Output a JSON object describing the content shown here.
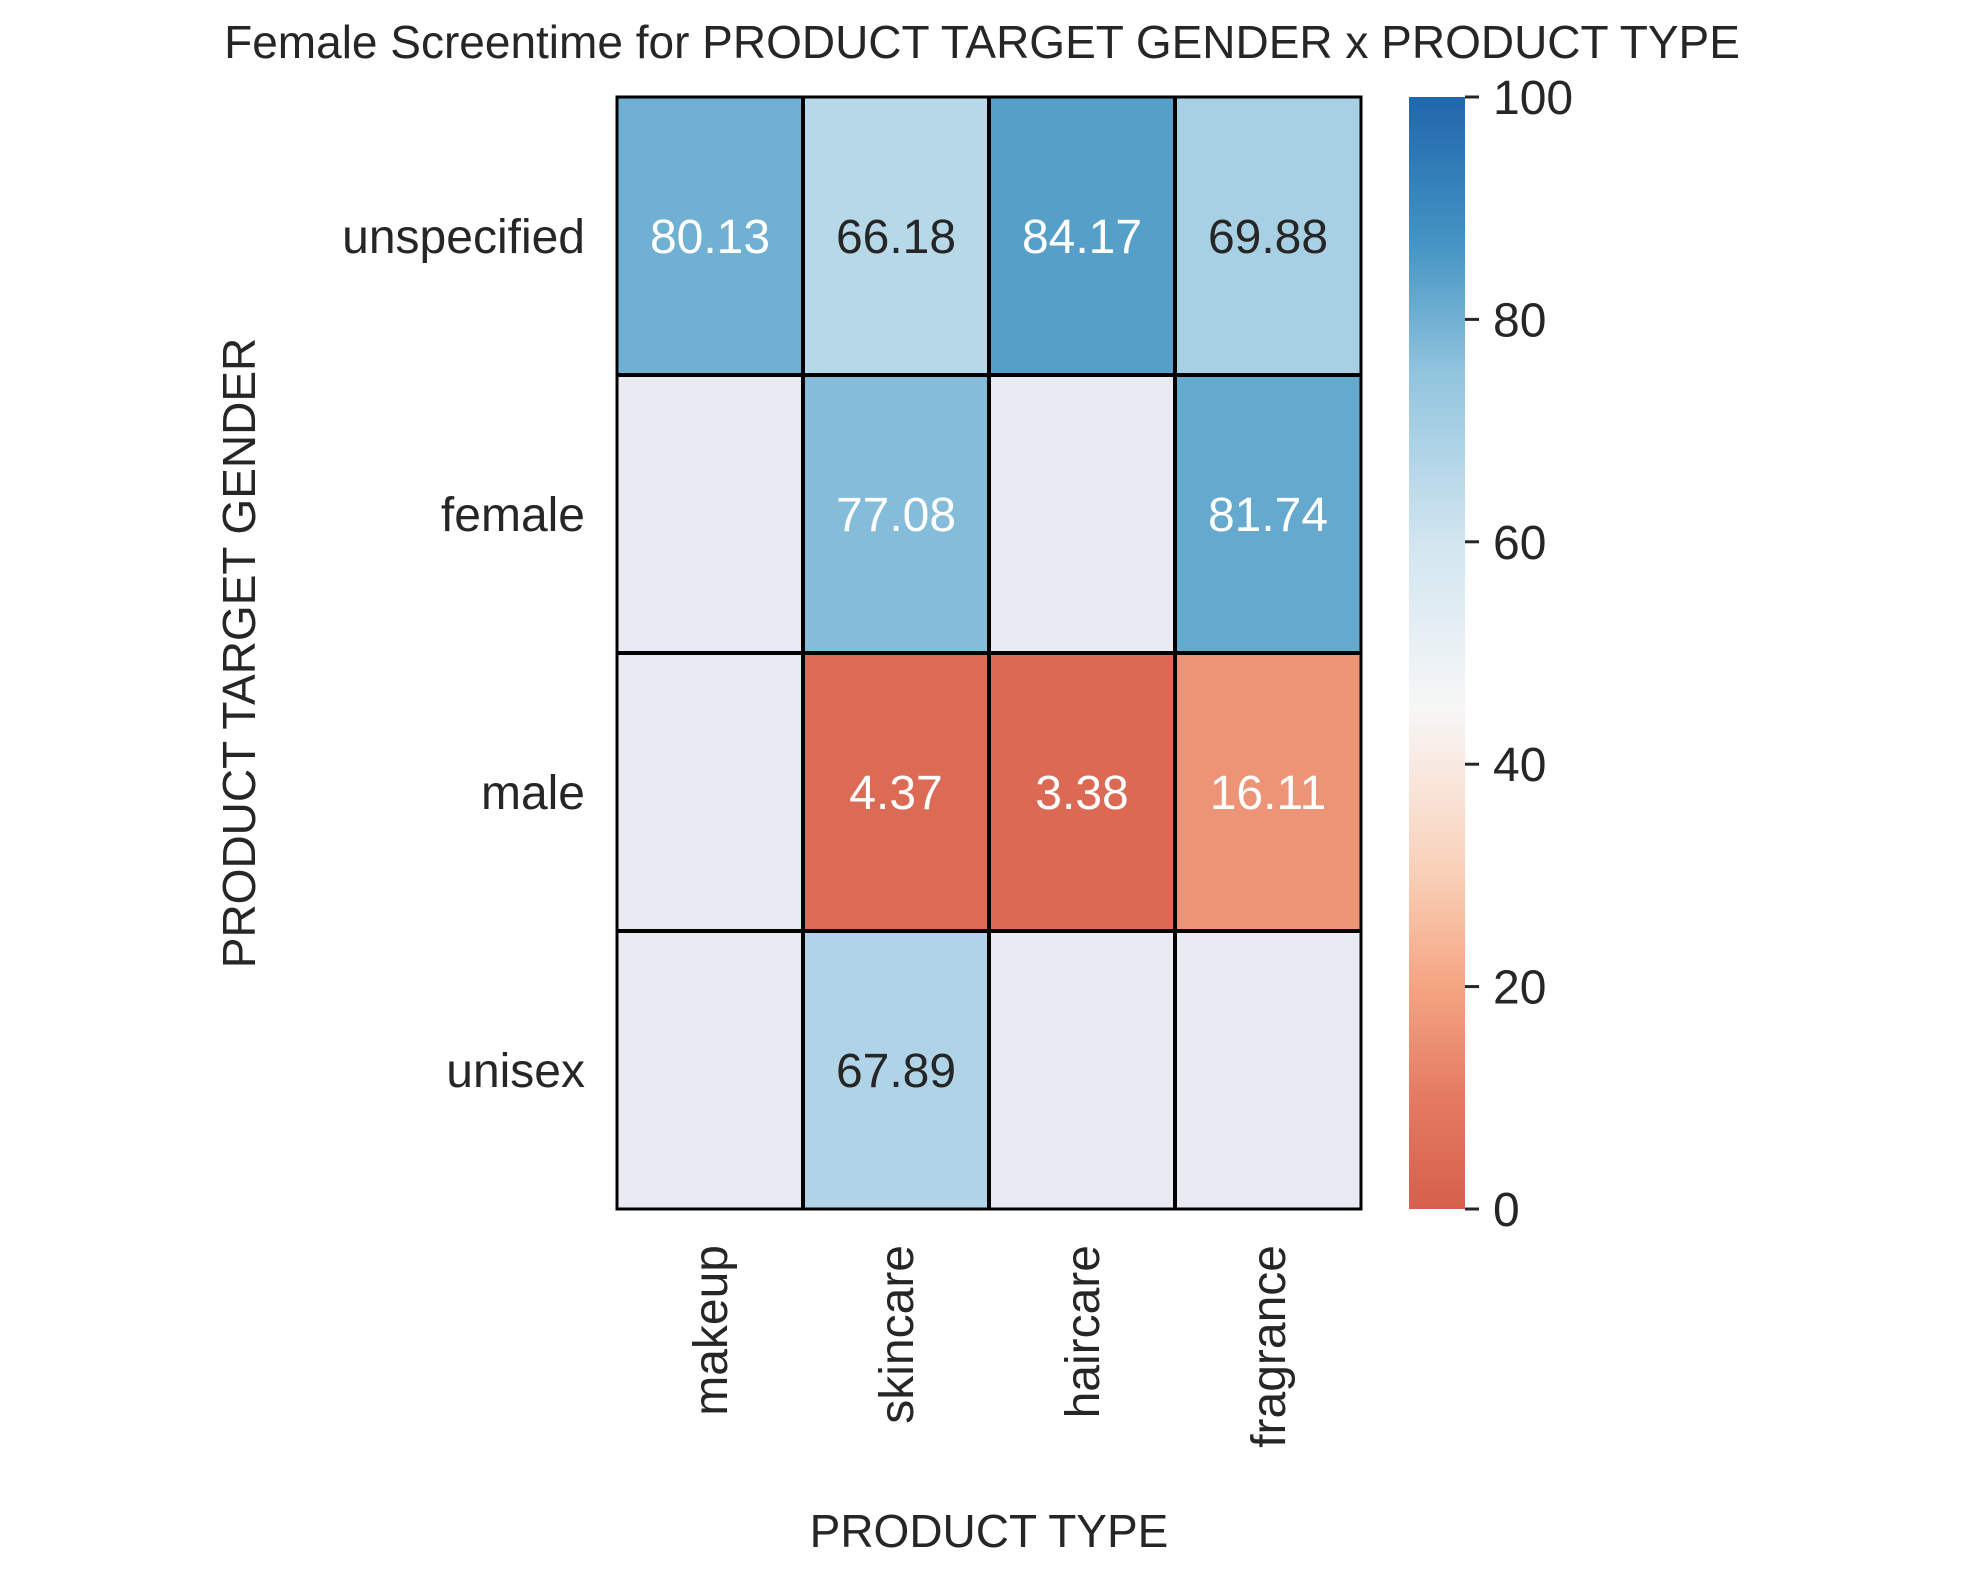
{
  "chart_data": {
    "type": "heatmap",
    "title": "Female Screentime for PRODUCT TARGET GENDER x PRODUCT TYPE",
    "xlabel": "PRODUCT TYPE",
    "ylabel": "PRODUCT TARGET GENDER",
    "x_categories": [
      "makeup",
      "skincare",
      "haircare",
      "fragrance"
    ],
    "y_categories": [
      "unspecified",
      "female",
      "male",
      "unisex"
    ],
    "values": [
      [
        80.13,
        66.18,
        84.17,
        69.88
      ],
      [
        null,
        77.08,
        null,
        81.74
      ],
      [
        null,
        4.37,
        3.38,
        16.11
      ],
      [
        null,
        67.89,
        null,
        null
      ]
    ],
    "value_labels": [
      [
        "80.13",
        "66.18",
        "84.17",
        "69.88"
      ],
      [
        "",
        "77.08",
        "",
        "81.74"
      ],
      [
        "",
        "4.37",
        "3.38",
        "16.11"
      ],
      [
        "",
        "67.89",
        "",
        ""
      ]
    ],
    "colorbar": {
      "range": [
        0,
        100
      ],
      "ticks": [
        "0",
        "20",
        "40",
        "60",
        "80",
        "100"
      ],
      "colors": {
        "low": "#d6604d",
        "mid": "#f7f7f7",
        "high": "#2166ac"
      }
    },
    "missing_color": "#eaeaf2",
    "cell_border_color": "#000000",
    "grid": false
  }
}
